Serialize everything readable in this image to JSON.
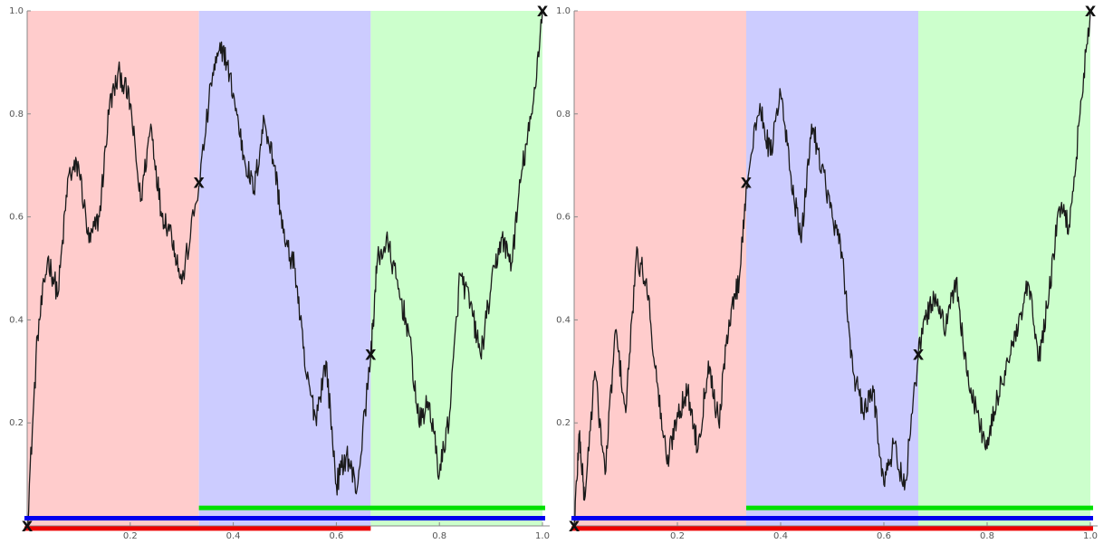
{
  "figure": {
    "background": "#ffffff"
  },
  "chart_data": [
    {
      "type": "line",
      "title": "",
      "xlabel": "",
      "ylabel": "",
      "xlim": [
        0,
        1
      ],
      "ylim": [
        0,
        1
      ],
      "grid": false,
      "x_ticks": [
        0.2,
        0.4,
        0.6,
        0.8,
        1.0
      ],
      "x_tick_labels": [
        "0.2",
        "0.4",
        "0.6",
        "0.8",
        "1.0"
      ],
      "y_ticks": [
        0.2,
        0.4,
        0.6,
        0.8,
        1.0
      ],
      "y_tick_labels": [
        "0.2",
        "0.4",
        "0.6",
        "0.8",
        "1.0"
      ],
      "regions": [
        {
          "x": [
            0,
            0.3333
          ],
          "color": "#ffcccc"
        },
        {
          "x": [
            0.3333,
            0.6667
          ],
          "color": "#ccccff"
        },
        {
          "x": [
            0.6667,
            1.0
          ],
          "color": "#ccffcc"
        }
      ],
      "curve_color": "#1a1a1a",
      "series": [
        {
          "x": [
            0,
            0.02,
            0.04,
            0.06,
            0.08,
            0.1,
            0.12,
            0.14,
            0.16,
            0.18,
            0.2,
            0.22,
            0.24,
            0.26,
            0.28,
            0.3,
            0.3333,
            0.36,
            0.38,
            0.4,
            0.42,
            0.44,
            0.46,
            0.48,
            0.5,
            0.52,
            0.54,
            0.56,
            0.58,
            0.6,
            0.62,
            0.64,
            0.6667,
            0.68,
            0.7,
            0.72,
            0.74,
            0.76,
            0.78,
            0.8,
            0.82,
            0.84,
            0.86,
            0.88,
            0.9,
            0.92,
            0.94,
            0.96,
            0.98,
            1.0
          ],
          "y": [
            0,
            0.37,
            0.52,
            0.45,
            0.68,
            0.7,
            0.55,
            0.6,
            0.82,
            0.88,
            0.82,
            0.63,
            0.78,
            0.61,
            0.57,
            0.47,
            0.66,
            0.88,
            0.93,
            0.84,
            0.72,
            0.65,
            0.79,
            0.7,
            0.55,
            0.5,
            0.3,
            0.21,
            0.32,
            0.08,
            0.14,
            0.07,
            0.33,
            0.52,
            0.55,
            0.46,
            0.38,
            0.2,
            0.24,
            0.1,
            0.22,
            0.49,
            0.43,
            0.33,
            0.46,
            0.56,
            0.51,
            0.69,
            0.8,
            1.0
          ]
        }
      ],
      "markers": [
        {
          "x": 0,
          "y": 0,
          "label": "X"
        },
        {
          "x": 0.3333,
          "y": 0.6667,
          "label": "X"
        },
        {
          "x": 0.6667,
          "y": 0.3333,
          "label": "X"
        },
        {
          "x": 1.0,
          "y": 1.0,
          "label": "X"
        }
      ],
      "bars": [
        {
          "x": [
            0.3333,
            1.0
          ],
          "y": 0.035,
          "color": "#00e000"
        },
        {
          "x": [
            0,
            1.0
          ],
          "y": 0.015,
          "color": "#0000ee"
        },
        {
          "x": [
            0,
            0.6667
          ],
          "y": -0.005,
          "color": "#ee0000"
        }
      ]
    },
    {
      "type": "line",
      "title": "",
      "xlabel": "",
      "ylabel": "",
      "xlim": [
        0,
        1
      ],
      "ylim": [
        0,
        1
      ],
      "grid": false,
      "x_ticks": [
        0.2,
        0.4,
        0.6,
        0.8,
        1.0
      ],
      "x_tick_labels": [
        "0.2",
        "0.4",
        "0.6",
        "0.8",
        "1.0"
      ],
      "y_ticks": [
        0.2,
        0.4,
        0.6,
        0.8,
        1.0
      ],
      "y_tick_labels": [
        "0.2",
        "0.4",
        "0.6",
        "0.8",
        "1.0"
      ],
      "regions": [
        {
          "x": [
            0,
            0.3333
          ],
          "color": "#ffcccc"
        },
        {
          "x": [
            0.3333,
            0.6667
          ],
          "color": "#ccccff"
        },
        {
          "x": [
            0.6667,
            1.0
          ],
          "color": "#ccffcc"
        }
      ],
      "curve_color": "#1a1a1a",
      "series": [
        {
          "x": [
            0,
            0.01,
            0.02,
            0.04,
            0.06,
            0.08,
            0.1,
            0.12,
            0.14,
            0.16,
            0.18,
            0.2,
            0.22,
            0.24,
            0.26,
            0.28,
            0.3,
            0.32,
            0.3333,
            0.36,
            0.38,
            0.4,
            0.42,
            0.44,
            0.46,
            0.48,
            0.5,
            0.52,
            0.54,
            0.56,
            0.58,
            0.6,
            0.62,
            0.64,
            0.6667,
            0.68,
            0.7,
            0.72,
            0.74,
            0.76,
            0.78,
            0.8,
            0.82,
            0.84,
            0.86,
            0.88,
            0.9,
            0.92,
            0.94,
            0.96,
            0.98,
            1.0
          ],
          "y": [
            0,
            0.18,
            0.05,
            0.3,
            0.1,
            0.38,
            0.22,
            0.52,
            0.48,
            0.28,
            0.12,
            0.22,
            0.26,
            0.15,
            0.32,
            0.2,
            0.4,
            0.48,
            0.66,
            0.82,
            0.72,
            0.84,
            0.68,
            0.55,
            0.78,
            0.7,
            0.6,
            0.52,
            0.3,
            0.22,
            0.26,
            0.08,
            0.16,
            0.07,
            0.33,
            0.4,
            0.45,
            0.38,
            0.48,
            0.3,
            0.22,
            0.15,
            0.25,
            0.32,
            0.38,
            0.47,
            0.32,
            0.45,
            0.62,
            0.58,
            0.8,
            1.0
          ]
        }
      ],
      "markers": [
        {
          "x": 0,
          "y": 0,
          "label": "X"
        },
        {
          "x": 0.3333,
          "y": 0.6667,
          "label": "X"
        },
        {
          "x": 0.6667,
          "y": 0.3333,
          "label": "X"
        },
        {
          "x": 1.0,
          "y": 1.0,
          "label": "X"
        }
      ],
      "bars": [
        {
          "x": [
            0.3333,
            1.0
          ],
          "y": 0.035,
          "color": "#00e000"
        },
        {
          "x": [
            0,
            1.0
          ],
          "y": 0.015,
          "color": "#0000ee"
        },
        {
          "x": [
            0,
            1.0
          ],
          "y": -0.005,
          "color": "#ee0000"
        }
      ]
    }
  ]
}
